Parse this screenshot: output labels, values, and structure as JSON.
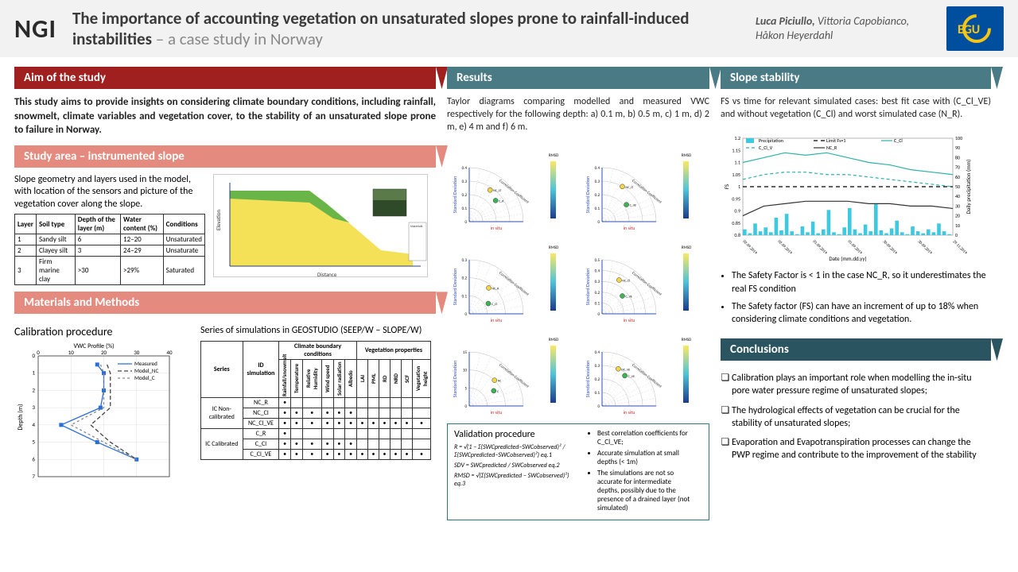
{
  "header": {
    "logo_ngi": "NGI",
    "title_main": "The importance of accounting vegetation on unsaturated slopes prone to rainfall-induced instabilities",
    "title_sub": " – a case study in Norway",
    "authors_lead": "Luca Piciullo,",
    "authors_rest": " Vittoria Capobianco, Håkon Heyerdahl"
  },
  "aim": {
    "header": "Aim of the study",
    "text": "This study aims to provide insights on considering climate boundary conditions, including rainfall, snowmelt, climate variables and vegetation cover, to the stability of an unsaturated slope prone to failure in Norway."
  },
  "study_area": {
    "header": "Study area – instrumented slope",
    "text": "Slope geometry and layers used in the model, with location of the sensors and picture of the vegetation cover along the slope.",
    "table": {
      "cols": [
        "Layer",
        "Soil type",
        "Depth of the layer (m)",
        "Water content (%)",
        "Conditions"
      ],
      "rows": [
        [
          "1",
          "Sandy silt",
          "6",
          "12–20",
          "Unsaturated"
        ],
        [
          "2",
          "Clayey silt",
          "3",
          "24–29",
          "Unsaturate"
        ],
        [
          "3",
          "Firm marine clay",
          ">30",
          ">29%",
          "Saturated"
        ]
      ]
    },
    "slope": {
      "topsoil_color": "#6ab547",
      "subsoil_color": "#f4e157",
      "groundwater": "#3d6db5",
      "photo_sky": "#5a7a4a",
      "photo_ground": "#2f4a28",
      "axes_color": "#2a3f7a"
    }
  },
  "methods": {
    "header": "Materials and Methods",
    "calib_title": "Calibration procedure",
    "vwc_chart": {
      "xlabel": "VWC Profile (%)",
      "ylabel": "Depth (m)",
      "xlim": [
        0,
        40
      ],
      "xticks": [
        0,
        10,
        20,
        30,
        40
      ],
      "ylim": [
        0,
        7
      ],
      "yticks": [
        0,
        1,
        2,
        3,
        4,
        5,
        6,
        7
      ],
      "series": {
        "Measured": {
          "color": "#2a6fd6",
          "dash": "0",
          "marker": "square",
          "pts": [
            [
              18,
              0.5
            ],
            [
              20,
              1
            ],
            [
              20,
              2
            ],
            [
              19,
              3
            ],
            [
              7,
              4
            ],
            [
              18,
              5
            ],
            [
              30,
              6
            ]
          ]
        },
        "Model_NC": {
          "color": "#444",
          "dash": "5,3",
          "marker": "none",
          "pts": [
            [
              21,
              0.5
            ],
            [
              22,
              1
            ],
            [
              22,
              2
            ],
            [
              22,
              3
            ],
            [
              16,
              4
            ],
            [
              22,
              5
            ],
            [
              30,
              6
            ]
          ]
        },
        "Model_C": {
          "color": "#888",
          "dash": "3,3",
          "marker": "none",
          "pts": [
            [
              19,
              0.5
            ],
            [
              20,
              1
            ],
            [
              20,
              2
            ],
            [
              20,
              3
            ],
            [
              10,
              4
            ],
            [
              20,
              5
            ],
            [
              30,
              6
            ]
          ]
        }
      }
    },
    "sim_text": "Series of simulations in GEOSTUDIO (SEEP/W – SLOPE/W)",
    "bc_table": {
      "group_headers": [
        "Climate boundary conditions",
        "Vegetation properties"
      ],
      "cols": [
        "Series",
        "ID simulation",
        "Rainfall/snowmelt",
        "Temperature",
        "Relative Humidity",
        "Wind speed",
        "Solar radiation",
        "Albedo",
        "LAI",
        "PML",
        "RD",
        "NRD",
        "SCF",
        "Vegetation height"
      ],
      "rows": [
        [
          "IC Non-calibrated",
          "NC_R",
          "•",
          "",
          "",
          "",
          "",
          "",
          "",
          "",
          "",
          "",
          "",
          ""
        ],
        [
          "",
          "NC_Cl",
          "•",
          "•",
          "•",
          "•",
          "•",
          "•",
          "",
          "",
          "",
          "",
          "",
          ""
        ],
        [
          "",
          "NC_Cl_VE",
          "•",
          "•",
          "•",
          "•",
          "•",
          "•",
          "•",
          "•",
          "•",
          "•",
          "•",
          "•"
        ],
        [
          "IC Calibrated",
          "C_R",
          "•",
          "",
          "",
          "",
          "",
          "",
          "",
          "",
          "",
          "",
          "",
          ""
        ],
        [
          "",
          "C_Cl",
          "•",
          "•",
          "•",
          "•",
          "•",
          "•",
          "",
          "",
          "",
          "",
          "",
          ""
        ],
        [
          "",
          "C_Cl_VE",
          "•",
          "•",
          "•",
          "•",
          "•",
          "•",
          "•",
          "•",
          "•",
          "•",
          "•",
          "•"
        ]
      ]
    }
  },
  "results": {
    "header": "Results",
    "text": "Taylor diagrams comparing modelled and measured VWC respectively for the following depth: a) 0.1 m, b) 0.5 m, c) 1 m, d) 2 m, e) 4 m and f) 6 m.",
    "taylor": {
      "arc_label": "Correlation Coefficient",
      "y_label": "Standard Deviation",
      "x_label": "in situ",
      "x_label_color": "#c73030",
      "axes_color": "#2d4fb8",
      "rmsd_label": "RMSD",
      "rmsd_gradient": [
        "#fce862",
        "#4ec3d9",
        "#1b3b8c"
      ],
      "marker_colors": {
        "NC": "#f2d646",
        "C": "#3bb553"
      },
      "panels": [
        {
          "id": "a",
          "sd_max": 0.4,
          "ticks": [
            0,
            0.1,
            0.2,
            0.3,
            0.4
          ],
          "points": [
            {
              "l": "NC_Cl",
              "sd": 0.28,
              "corr": 0.55,
              "c": "NC"
            },
            {
              "l": "C_R",
              "sd": 0.25,
              "corr": 0.78,
              "c": "C"
            }
          ]
        },
        {
          "id": "b",
          "sd_max": 0.4,
          "ticks": [
            0,
            0.1,
            0.2,
            0.3,
            0.4
          ],
          "points": [
            {
              "l": "NC_Cl",
              "sd": 0.3,
              "corr": 0.5,
              "c": "NC"
            },
            {
              "l": "C_VE",
              "sd": 0.22,
              "corr": 0.82,
              "c": "C"
            }
          ]
        },
        {
          "id": "c",
          "sd_max": 0.3,
          "ticks": [
            0,
            0.1,
            0.2,
            0.3
          ],
          "points": [
            {
              "l": "NC_R",
              "sd": 0.18,
              "corr": 0.6,
              "c": "NC"
            },
            {
              "l": "C_Cl",
              "sd": 0.12,
              "corr": 0.88,
              "c": "C"
            }
          ]
        },
        {
          "id": "d",
          "sd_max": 0.5,
          "ticks": [
            0,
            0.1,
            0.2,
            0.3,
            0.4,
            0.5
          ],
          "points": [
            {
              "l": "NC_Cl",
              "sd": 0.35,
              "corr": 0.45,
              "c": "NC"
            },
            {
              "l": "C_VE",
              "sd": 0.25,
              "corr": 0.75,
              "c": "C"
            }
          ]
        },
        {
          "id": "e",
          "sd_max": 15,
          "ticks": [
            0,
            5,
            10,
            15
          ],
          "points": [
            {
              "l": "NC",
              "sd": 10,
              "corr": 0.7,
              "c": "NC"
            },
            {
              "l": "C",
              "sd": 8,
              "corr": 0.85,
              "c": "C"
            }
          ]
        },
        {
          "id": "f",
          "sd_max": 0.4,
          "ticks": [
            0,
            0.1,
            0.2,
            0.3,
            0.4
          ],
          "points": [
            {
              "l": "NC_VE",
              "sd": 0.3,
              "corr": 0.4,
              "c": "NC"
            },
            {
              "l": "C_VE",
              "sd": 0.28,
              "corr": 0.6,
              "c": "C"
            }
          ]
        }
      ]
    },
    "validation": {
      "title": "Validation procedure",
      "eqs": [
        "R = √(1 − Σ(SWCpredicted−SWCobserved)² / Σ(SWCpredicted−SWCobserved)²)   eq.1",
        "SDV = SWCpredicted / SWCobserved   eq.2",
        "RMSD = √(Σ(SWCpredicted − SWCobserved)²)   eq.3"
      ],
      "bullets": [
        "Best correlation coefficients for C_Cl_VE;",
        "Accurate simulation at small depths (< 1m)",
        "The simulations are not so accurate for intermediate depths, possibly due to the presence of a drained layer (not simulated)"
      ]
    }
  },
  "stability": {
    "header": "Slope stability",
    "text": "FS vs time for relevant simulated cases: best fit case with (C_Cl_VE) and without vegetation (C_Cl) and worst simulated case (N_R).",
    "chart": {
      "y1label": "FS",
      "y1lim": [
        0.8,
        1.2
      ],
      "y1ticks": [
        0.8,
        0.85,
        0.9,
        0.95,
        1,
        1.05,
        1.1,
        1.15,
        1.2
      ],
      "y2label": "Daily precipitation (mm)",
      "y2lim": [
        0,
        100
      ],
      "y2ticks": [
        0,
        10,
        20,
        30,
        40,
        50,
        60,
        70,
        80,
        90,
        100
      ],
      "xlabel": "Date (mm.dd.yy)",
      "xdates": [
        "02.09.2019",
        "02.09.2019",
        "01.09.2019",
        "01.09.2019",
        "30.09.2019",
        "30.09.2019",
        "29.11.2019"
      ],
      "series": {
        "Precipitation": {
          "color": "#3ec9e0",
          "type": "bar",
          "values": [
            6,
            2,
            12,
            4,
            8,
            3,
            18,
            5,
            22,
            4,
            1,
            9,
            3,
            14,
            2,
            6,
            26,
            3,
            1,
            8,
            28,
            6,
            2,
            11,
            4,
            32,
            5,
            2,
            7,
            15,
            3,
            1,
            9,
            4,
            2,
            6,
            3,
            12,
            4,
            1
          ]
        },
        "Limit Fs=1": {
          "color": "#000",
          "type": "line",
          "dash": "5,4",
          "values": [
            [
              0,
              1
            ],
            [
              1,
              1
            ]
          ]
        },
        "C_Cl": {
          "color": "#2eb1a8",
          "type": "line",
          "dash": "0",
          "values": [
            [
              0,
              1.1
            ],
            [
              0.1,
              1.12
            ],
            [
              0.2,
              1.14
            ],
            [
              0.3,
              1.13
            ],
            [
              0.4,
              1.14
            ],
            [
              0.5,
              1.12
            ],
            [
              0.6,
              1.1
            ],
            [
              0.7,
              1.09
            ],
            [
              0.8,
              1.07
            ],
            [
              0.9,
              1.06
            ],
            [
              1,
              1.05
            ]
          ]
        },
        "C_Cl_V": {
          "color": "#2eb1a8",
          "type": "line",
          "dash": "4,3",
          "values": [
            [
              0,
              1.03
            ],
            [
              0.1,
              1.05
            ],
            [
              0.2,
              1.06
            ],
            [
              0.3,
              1.06
            ],
            [
              0.4,
              1.05
            ],
            [
              0.5,
              1.05
            ],
            [
              0.6,
              1.04
            ],
            [
              0.7,
              1.03
            ],
            [
              0.8,
              1.02
            ],
            [
              0.9,
              1.01
            ],
            [
              1,
              1.0
            ]
          ]
        },
        "NC_R": {
          "color": "#333",
          "type": "line",
          "dash": "0",
          "values": [
            [
              0,
              0.88
            ],
            [
              0.1,
              0.92
            ],
            [
              0.2,
              0.93
            ],
            [
              0.3,
              0.94
            ],
            [
              0.4,
              0.94
            ],
            [
              0.5,
              0.94
            ],
            [
              0.6,
              0.93
            ],
            [
              0.7,
              0.93
            ],
            [
              0.8,
              0.92
            ],
            [
              0.9,
              0.92
            ],
            [
              1,
              0.91
            ]
          ]
        }
      }
    },
    "bullets": [
      "The Safety Factor is < 1 in the case NC_R, so it underestimates the real FS condition",
      "The Safety factor (FS) can have an increment of up to 18% when considering climate conditions and vegetation."
    ]
  },
  "conclusions": {
    "header": "Conclusions",
    "items": [
      "Calibration plays an important role when modelling the in-situ pore water pressure regime of unsaturated slopes;",
      "The hydrological effects of vegetation can be crucial for the stability of unsaturated slopes;",
      "Evaporation and Evapotranspiration processes can change the PWP regime and contribute to the improvement of the stability"
    ]
  }
}
